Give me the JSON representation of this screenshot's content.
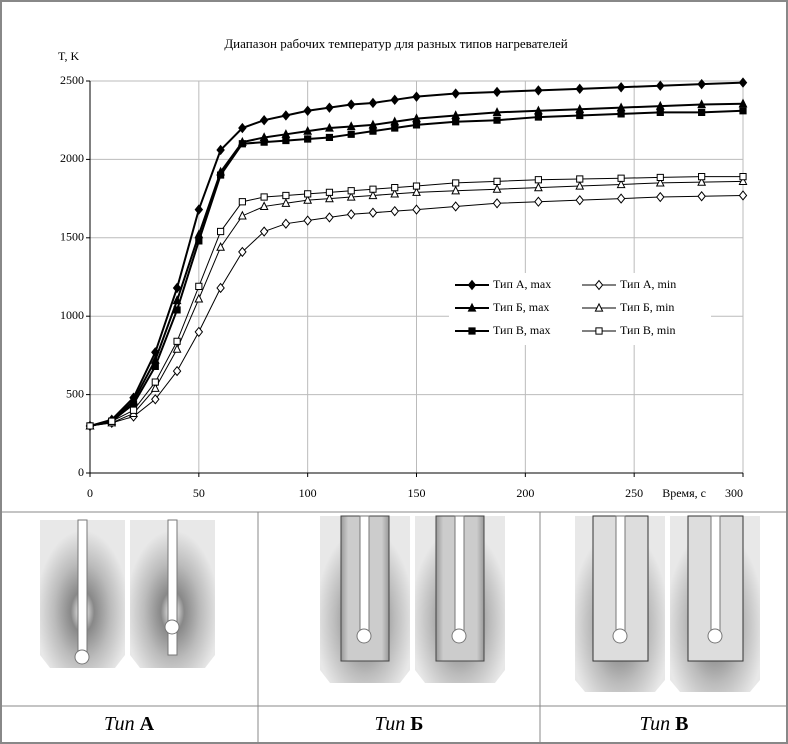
{
  "chart_data": {
    "type": "line",
    "title": "Диапазон рабочих температур для разных типов нагревателей",
    "y_label": "T, K",
    "x_label": "Время, с",
    "x": [
      0,
      10,
      20,
      30,
      40,
      50,
      60,
      70,
      80,
      90,
      100,
      110,
      120,
      130,
      140,
      150,
      168,
      187,
      206,
      225,
      244,
      262,
      281,
      300
    ],
    "series": [
      {
        "name": "Тип А, max",
        "color": "#000000",
        "marker": "diamond",
        "filled": true,
        "line_width": 2,
        "values": [
          300,
          340,
          480,
          770,
          1180,
          1680,
          2060,
          2200,
          2250,
          2280,
          2310,
          2330,
          2350,
          2360,
          2380,
          2400,
          2420,
          2430,
          2440,
          2450,
          2460,
          2470,
          2480,
          2490
        ]
      },
      {
        "name": "Тип А, min",
        "color": "#000000",
        "marker": "diamond",
        "filled": false,
        "line_width": 1,
        "values": [
          300,
          320,
          360,
          470,
          650,
          900,
          1180,
          1410,
          1540,
          1590,
          1610,
          1630,
          1650,
          1660,
          1670,
          1680,
          1700,
          1720,
          1730,
          1740,
          1750,
          1760,
          1765,
          1770
        ]
      },
      {
        "name": "Тип Б, max",
        "color": "#000000",
        "marker": "triangle",
        "filled": true,
        "line_width": 2,
        "values": [
          300,
          330,
          460,
          720,
          1100,
          1520,
          1920,
          2110,
          2140,
          2160,
          2180,
          2200,
          2210,
          2220,
          2240,
          2260,
          2280,
          2300,
          2310,
          2320,
          2330,
          2340,
          2350,
          2355
        ]
      },
      {
        "name": "Тип Б, min",
        "color": "#000000",
        "marker": "triangle",
        "filled": false,
        "line_width": 1,
        "values": [
          300,
          320,
          380,
          540,
          790,
          1110,
          1440,
          1640,
          1700,
          1720,
          1740,
          1750,
          1760,
          1770,
          1780,
          1790,
          1800,
          1810,
          1820,
          1830,
          1840,
          1850,
          1855,
          1860
        ]
      },
      {
        "name": "Тип В, max",
        "color": "#000000",
        "marker": "square",
        "filled": true,
        "line_width": 2,
        "values": [
          300,
          330,
          440,
          680,
          1040,
          1480,
          1900,
          2100,
          2110,
          2120,
          2130,
          2140,
          2160,
          2180,
          2200,
          2220,
          2240,
          2250,
          2270,
          2280,
          2290,
          2300,
          2300,
          2310
        ]
      },
      {
        "name": "Тип В, min",
        "color": "#000000",
        "marker": "square",
        "filled": false,
        "line_width": 1,
        "values": [
          300,
          330,
          400,
          580,
          840,
          1190,
          1540,
          1730,
          1760,
          1770,
          1780,
          1790,
          1800,
          1810,
          1820,
          1830,
          1850,
          1860,
          1870,
          1875,
          1880,
          1885,
          1890,
          1890
        ]
      }
    ],
    "xlim": [
      0,
      300
    ],
    "xticks": [
      0,
      50,
      100,
      150,
      200,
      250,
      300
    ],
    "ylim": [
      0,
      2500
    ],
    "yticks": [
      0,
      500,
      1000,
      1500,
      2000,
      2500
    ],
    "grid": true,
    "legend": "center-right"
  },
  "panels": [
    {
      "prefix": "Тип",
      "letter": "А"
    },
    {
      "prefix": "Тип",
      "letter": "Б"
    },
    {
      "prefix": "Тип",
      "letter": "В"
    }
  ]
}
